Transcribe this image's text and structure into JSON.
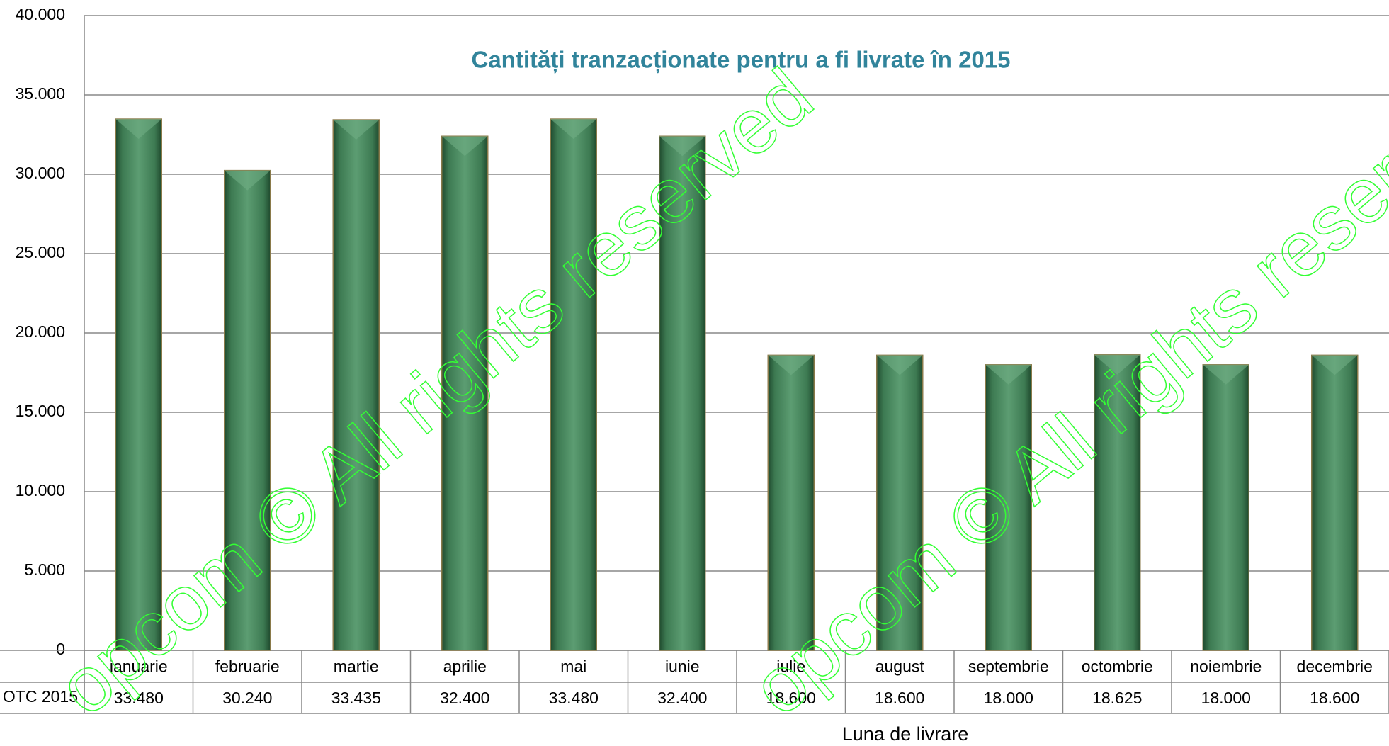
{
  "chart_data": {
    "type": "bar",
    "title": "Cantități tranzacționate pentru a fi livrate în 2015",
    "x_label": "Luna de livrare",
    "watermark": "opcom © All rights reserved",
    "categories": [
      "ianuarie",
      "februarie",
      "martie",
      "aprilie",
      "mai",
      "iunie",
      "iulie",
      "august",
      "septembrie",
      "octombrie",
      "noiembrie",
      "decembrie"
    ],
    "series": [
      {
        "name": "OTC 2015",
        "color": "#3d7a52",
        "values": [
          33480,
          30240,
          33435,
          32400,
          33480,
          32400,
          18600,
          18600,
          18000,
          18625,
          18000,
          18600
        ],
        "value_labels": [
          "33.480",
          "30.240",
          "33.435",
          "32.400",
          "33.480",
          "32.400",
          "18.600",
          "18.600",
          "18.000",
          "18.625",
          "18.000",
          "18.600"
        ]
      }
    ],
    "ylim": [
      0,
      40000
    ],
    "yticks": [
      {
        "value": 0,
        "label": "0"
      },
      {
        "value": 5000,
        "label": "5.000"
      },
      {
        "value": 10000,
        "label": "10.000"
      },
      {
        "value": 15000,
        "label": "15.000"
      },
      {
        "value": 20000,
        "label": "20.000"
      },
      {
        "value": 25000,
        "label": "25.000"
      },
      {
        "value": 30000,
        "label": "30.000"
      },
      {
        "value": 35000,
        "label": "35.000"
      },
      {
        "value": 40000,
        "label": "40.000"
      }
    ],
    "grid": true
  }
}
